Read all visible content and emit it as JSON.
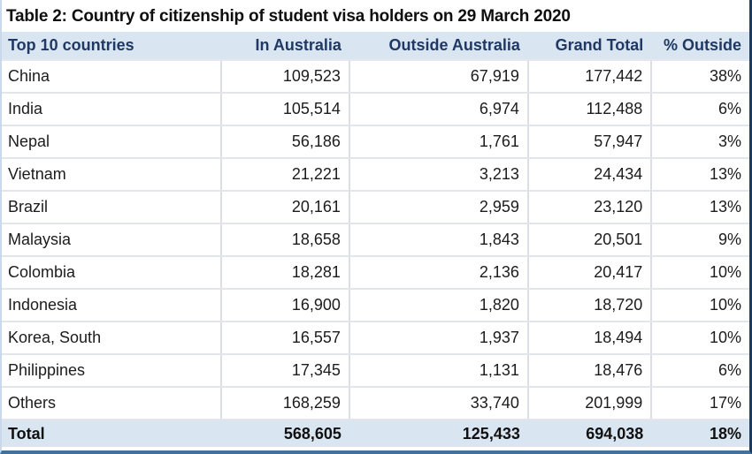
{
  "page": {
    "title": "Table 2: Country of citizenship of student visa holders on 29 March 2020"
  },
  "table": {
    "columns": [
      "Top 10 countries",
      "In Australia",
      "Outside Australia",
      "Grand Total",
      "% Outside"
    ],
    "rows": [
      {
        "country": "China",
        "in_australia": "109,523",
        "outside_australia": "67,919",
        "grand_total": "177,442",
        "pct_outside": "38%"
      },
      {
        "country": "India",
        "in_australia": "105,514",
        "outside_australia": "6,974",
        "grand_total": "112,488",
        "pct_outside": "6%"
      },
      {
        "country": "Nepal",
        "in_australia": "56,186",
        "outside_australia": "1,761",
        "grand_total": "57,947",
        "pct_outside": "3%"
      },
      {
        "country": "Vietnam",
        "in_australia": "21,221",
        "outside_australia": "3,213",
        "grand_total": "24,434",
        "pct_outside": "13%"
      },
      {
        "country": "Brazil",
        "in_australia": "20,161",
        "outside_australia": "2,959",
        "grand_total": "23,120",
        "pct_outside": "13%"
      },
      {
        "country": "Malaysia",
        "in_australia": "18,658",
        "outside_australia": "1,843",
        "grand_total": "20,501",
        "pct_outside": "9%"
      },
      {
        "country": "Colombia",
        "in_australia": "18,281",
        "outside_australia": "2,136",
        "grand_total": "20,417",
        "pct_outside": "10%"
      },
      {
        "country": "Indonesia",
        "in_australia": "16,900",
        "outside_australia": "1,820",
        "grand_total": "18,720",
        "pct_outside": "10%"
      },
      {
        "country": "Korea, South",
        "in_australia": "16,557",
        "outside_australia": "1,937",
        "grand_total": "18,494",
        "pct_outside": "10%"
      },
      {
        "country": "Philippines",
        "in_australia": "17,345",
        "outside_australia": "1,131",
        "grand_total": "18,476",
        "pct_outside": "6%"
      },
      {
        "country": "Others",
        "in_australia": "168,259",
        "outside_australia": "33,740",
        "grand_total": "201,999",
        "pct_outside": "17%"
      }
    ],
    "total": {
      "country": "Total",
      "in_australia": "568,605",
      "outside_australia": "125,433",
      "grand_total": "694,038",
      "pct_outside": "18%"
    }
  },
  "colors": {
    "header_bg": "#d9e5f1",
    "header_text": "#1f3864",
    "total_bg": "#d9e5f1",
    "grid_border": "#dbdfe3",
    "bottom_edge": "#41719c",
    "right_edge": "#1c3a5e",
    "left_edge": "#c9d8ea"
  },
  "chart_data": {
    "type": "table",
    "title": "Table 2: Country of citizenship of student visa holders on 29 March 2020",
    "columns": [
      "Top 10 countries",
      "In Australia",
      "Outside Australia",
      "Grand Total",
      "% Outside"
    ],
    "rows": [
      [
        "China",
        109523,
        67919,
        177442,
        "38%"
      ],
      [
        "India",
        105514,
        6974,
        112488,
        "6%"
      ],
      [
        "Nepal",
        56186,
        1761,
        57947,
        "3%"
      ],
      [
        "Vietnam",
        21221,
        3213,
        24434,
        "13%"
      ],
      [
        "Brazil",
        20161,
        2959,
        23120,
        "13%"
      ],
      [
        "Malaysia",
        18658,
        1843,
        20501,
        "9%"
      ],
      [
        "Colombia",
        18281,
        2136,
        20417,
        "10%"
      ],
      [
        "Indonesia",
        16900,
        1820,
        18720,
        "10%"
      ],
      [
        "Korea, South",
        16557,
        1937,
        18494,
        "10%"
      ],
      [
        "Philippines",
        17345,
        1131,
        18476,
        "6%"
      ],
      [
        "Others",
        168259,
        33740,
        201999,
        "17%"
      ]
    ],
    "total_row": [
      "Total",
      568605,
      125433,
      694038,
      "18%"
    ]
  }
}
